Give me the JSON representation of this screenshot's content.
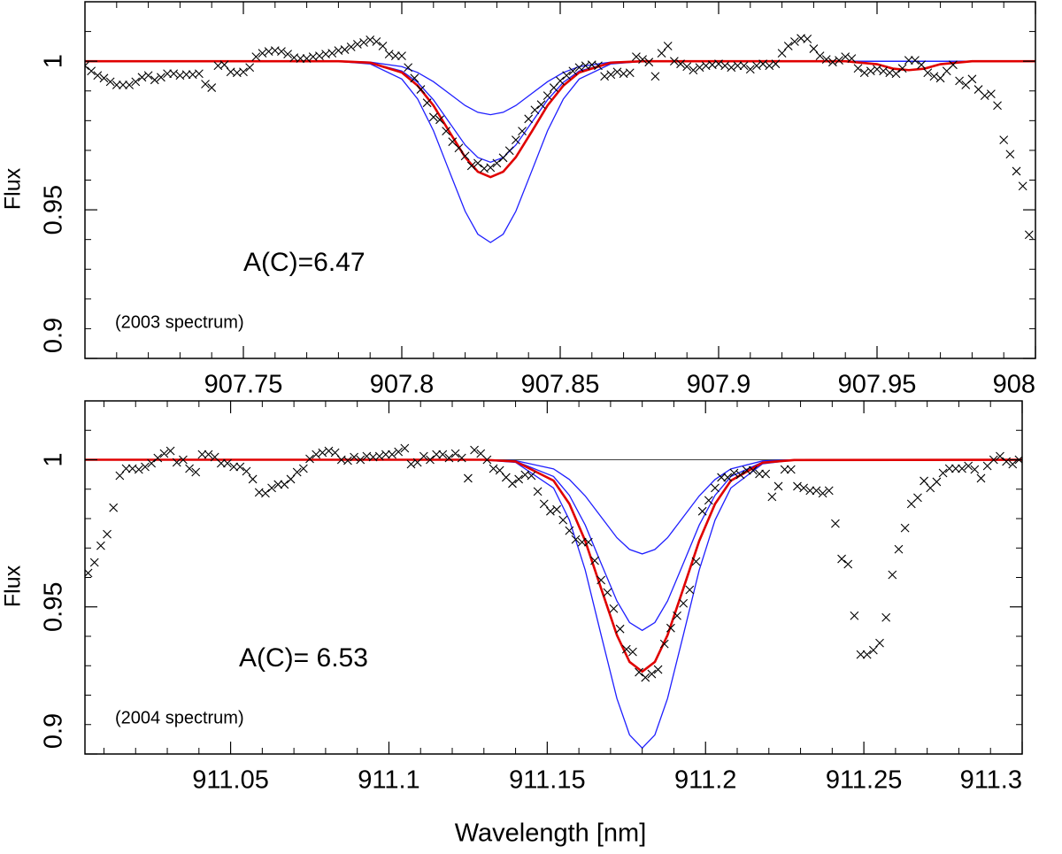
{
  "chart_data": [
    {
      "type": "scatter",
      "ylabel": "Flux",
      "xlim": [
        907.7,
        908.0
      ],
      "ylim": [
        0.9,
        1.02
      ],
      "xticks": [
        907.75,
        907.8,
        907.85,
        907.9,
        907.95,
        908
      ],
      "yticks": [
        0.9,
        0.95,
        1
      ],
      "xminor": [
        907.71,
        907.72,
        907.73,
        907.74,
        907.76,
        907.77,
        907.78,
        907.79,
        907.81,
        907.82,
        907.83,
        907.84,
        907.86,
        907.87,
        907.88,
        907.89,
        907.91,
        907.92,
        907.93,
        907.94,
        907.96,
        907.97,
        907.98,
        907.99
      ],
      "yminor": [
        0.91,
        0.92,
        0.93,
        0.94,
        0.96,
        0.97,
        0.98,
        0.99,
        1.01
      ],
      "annotations": [
        {
          "text": "A(C)=6.47"
        },
        {
          "text": "(2003 spectrum)"
        }
      ],
      "points": {
        "marker": "x",
        "color": "#000000",
        "x": [
          907.7,
          907.702,
          907.704,
          907.706,
          907.708,
          907.71,
          907.712,
          907.714,
          907.716,
          907.718,
          907.72,
          907.722,
          907.724,
          907.726,
          907.728,
          907.73,
          907.732,
          907.734,
          907.736,
          907.738,
          907.74,
          907.742,
          907.744,
          907.746,
          907.748,
          907.75,
          907.752,
          907.754,
          907.756,
          907.758,
          907.76,
          907.762,
          907.764,
          907.766,
          907.768,
          907.77,
          907.772,
          907.774,
          907.776,
          907.778,
          907.78,
          907.782,
          907.784,
          907.786,
          907.788,
          907.79,
          907.792,
          907.794,
          907.796,
          907.798,
          907.8,
          907.802,
          907.804,
          907.806,
          907.808,
          907.81,
          907.812,
          907.814,
          907.816,
          907.818,
          907.82,
          907.822,
          907.824,
          907.826,
          907.828,
          907.83,
          907.832,
          907.834,
          907.836,
          907.838,
          907.84,
          907.842,
          907.844,
          907.846,
          907.848,
          907.85,
          907.852,
          907.854,
          907.856,
          907.858,
          907.86,
          907.862,
          907.864,
          907.866,
          907.868,
          907.87,
          907.872,
          907.874,
          907.876,
          907.878,
          907.88,
          907.882,
          907.884,
          907.886,
          907.888,
          907.89,
          907.892,
          907.894,
          907.896,
          907.898,
          907.9,
          907.902,
          907.904,
          907.906,
          907.908,
          907.91,
          907.912,
          907.914,
          907.916,
          907.918,
          907.92,
          907.922,
          907.924,
          907.926,
          907.928,
          907.93,
          907.932,
          907.934,
          907.936,
          907.938,
          907.94,
          907.942,
          907.944,
          907.946,
          907.948,
          907.95,
          907.952,
          907.954,
          907.956,
          907.958,
          907.96,
          907.962,
          907.964,
          907.966,
          907.968,
          907.97,
          907.972,
          907.974,
          907.976,
          907.978,
          907.98,
          907.982,
          907.984,
          907.986,
          907.988,
          907.99,
          907.992,
          907.994,
          907.996,
          907.998
        ],
        "values": [
          0.9985,
          0.9967,
          0.9952,
          0.9943,
          0.9931,
          0.992,
          0.992,
          0.992,
          0.9931,
          0.9946,
          0.9952,
          0.9937,
          0.9946,
          0.9958,
          0.9958,
          0.9952,
          0.9955,
          0.9955,
          0.9958,
          0.9923,
          0.9911,
          0.9985,
          0.9988,
          0.9964,
          0.9961,
          0.9964,
          0.9979,
          1.0015,
          1.0027,
          1.0033,
          1.0036,
          1.0033,
          1.0024,
          1.0012,
          1.0009,
          1.0009,
          1.0015,
          1.0018,
          1.0024,
          1.0027,
          1.0036,
          1.0039,
          1.0048,
          1.0057,
          1.0063,
          1.0072,
          1.0066,
          1.0051,
          1.0024,
          1.0018,
          1.0018,
          0.9979,
          0.9943,
          0.9905,
          0.986,
          0.9812,
          0.9803,
          0.9765,
          0.9729,
          0.9708,
          0.9681,
          0.9648,
          0.9657,
          0.9639,
          0.9642,
          0.9657,
          0.9675,
          0.9699,
          0.9735,
          0.9765,
          0.9806,
          0.9836,
          0.9854,
          0.9884,
          0.9911,
          0.9934,
          0.9952,
          0.9967,
          0.9979,
          0.9985,
          0.9988,
          0.9985,
          0.9949,
          0.9955,
          0.9964,
          0.9958,
          0.9961,
          1.0015,
          1.0006,
          0.9997,
          0.9949,
          1.0027,
          1.0051,
          1,
          0.9991,
          0.9982,
          0.997,
          0.9979,
          0.9985,
          0.9988,
          0.9991,
          0.9985,
          0.9979,
          0.9985,
          0.9985,
          0.9973,
          0.9985,
          0.9991,
          0.9985,
          0.9991,
          1.0027,
          1.0051,
          1.0066,
          1.0077,
          1.0075,
          1.0042,
          1.0018,
          1.0006,
          0.9997,
          1.0003,
          1.0015,
          1.0009,
          0.9976,
          0.9961,
          0.9967,
          0.9973,
          0.9967,
          0.9961,
          0.9958,
          0.9976,
          1.0003,
          1.0003,
          0.9988,
          0.9961,
          0.9949,
          0.9943,
          0.9967,
          0.9988,
          0.9934,
          0.992,
          0.994,
          0.9905,
          0.9884,
          0.989,
          0.9851,
          0.9735,
          0.9687,
          0.963,
          0.958,
          0.9416
        ]
      },
      "curves": {
        "x": [
          907.7,
          907.78,
          907.79,
          907.8,
          907.805,
          907.81,
          907.815,
          907.82,
          907.824,
          907.828,
          907.832,
          907.836,
          907.841,
          907.846,
          907.851,
          907.856,
          907.866,
          907.876,
          907.94,
          907.95,
          907.955,
          907.96,
          907.965,
          907.97,
          907.98,
          908
        ],
        "series": [
          {
            "color": "#1f1fff",
            "width": 1.3,
            "values": [
              1,
              1,
              0.9997,
              0.9982,
              0.9962,
              0.9931,
              0.9891,
              0.9851,
              0.9828,
              0.982,
              0.9828,
              0.9851,
              0.9891,
              0.9931,
              0.9962,
              0.9982,
              0.9997,
              1,
              1,
              1,
              1,
              1,
              1,
              1,
              1,
              1
            ]
          },
          {
            "color": "#1f1fff",
            "width": 1.3,
            "values": [
              1,
              1,
              0.9995,
              0.9967,
              0.9929,
              0.987,
              0.9794,
              0.9718,
              0.9676,
              0.966,
              0.9676,
              0.9718,
              0.9794,
              0.987,
              0.9929,
              0.9967,
              0.9995,
              1,
              1,
              1,
              1,
              1,
              1,
              1,
              1,
              1
            ]
          },
          {
            "color": "#1f1fff",
            "width": 1.3,
            "values": [
              1,
              0.9999,
              0.9991,
              0.994,
              0.9873,
              0.9766,
              0.963,
              0.9495,
              0.9418,
              0.939,
              0.9418,
              0.9495,
              0.963,
              0.9766,
              0.9873,
              0.994,
              0.9991,
              0.9999,
              1,
              1,
              1,
              1,
              1,
              1,
              1,
              1
            ]
          },
          {
            "color": "#e00000",
            "width": 2.6,
            "values": [
              1,
              1,
              0.9995,
              0.9962,
              0.9918,
              0.9851,
              0.9763,
              0.9677,
              0.9628,
              0.961,
              0.9628,
              0.9677,
              0.9763,
              0.9851,
              0.9918,
              0.9962,
              0.9995,
              1,
              1,
              0.999,
              0.9975,
              0.997,
              0.9975,
              0.999,
              1,
              1
            ]
          }
        ]
      }
    },
    {
      "type": "scatter",
      "ylabel": "Flux",
      "xlabel": "Wavelength [nm]",
      "xlim": [
        911.004,
        911.3
      ],
      "ylim": [
        0.9,
        1.02
      ],
      "xticks": [
        911.05,
        911.1,
        911.15,
        911.2,
        911.25,
        911.3
      ],
      "yticks": [
        0.9,
        0.95,
        1
      ],
      "xminor": [
        911.01,
        911.02,
        911.03,
        911.04,
        911.06,
        911.07,
        911.08,
        911.09,
        911.11,
        911.12,
        911.13,
        911.14,
        911.16,
        911.17,
        911.18,
        911.19,
        911.21,
        911.22,
        911.23,
        911.24,
        911.26,
        911.27,
        911.28,
        911.29
      ],
      "yminor": [
        0.91,
        0.92,
        0.93,
        0.94,
        0.96,
        0.97,
        0.98,
        0.99,
        1.01
      ],
      "annotations": [
        {
          "text": "A(C)= 6.53"
        },
        {
          "text": "(2004 spectrum)"
        }
      ],
      "points": {
        "marker": "x",
        "color": "#000000",
        "x": [
          911.005,
          911.007,
          911.009,
          911.011,
          911.013,
          911.015,
          911.017,
          911.019,
          911.021,
          911.023,
          911.025,
          911.027,
          911.029,
          911.031,
          911.033,
          911.035,
          911.037,
          911.039,
          911.041,
          911.043,
          911.045,
          911.047,
          911.049,
          911.051,
          911.053,
          911.055,
          911.057,
          911.059,
          911.061,
          911.063,
          911.065,
          911.067,
          911.069,
          911.071,
          911.073,
          911.075,
          911.077,
          911.079,
          911.081,
          911.083,
          911.085,
          911.087,
          911.089,
          911.091,
          911.093,
          911.095,
          911.097,
          911.099,
          911.101,
          911.103,
          911.105,
          911.107,
          911.109,
          911.111,
          911.113,
          911.115,
          911.117,
          911.119,
          911.121,
          911.123,
          911.125,
          911.127,
          911.129,
          911.131,
          911.133,
          911.135,
          911.137,
          911.139,
          911.141,
          911.143,
          911.145,
          911.147,
          911.149,
          911.151,
          911.153,
          911.155,
          911.157,
          911.159,
          911.161,
          911.163,
          911.165,
          911.167,
          911.169,
          911.171,
          911.173,
          911.175,
          911.177,
          911.179,
          911.181,
          911.183,
          911.185,
          911.187,
          911.189,
          911.191,
          911.193,
          911.195,
          911.197,
          911.199,
          911.201,
          911.203,
          911.205,
          911.207,
          911.209,
          911.211,
          911.213,
          911.215,
          911.217,
          911.219,
          911.221,
          911.223,
          911.225,
          911.227,
          911.229,
          911.231,
          911.233,
          911.235,
          911.237,
          911.239,
          911.241,
          911.243,
          911.245,
          911.247,
          911.249,
          911.251,
          911.253,
          911.255,
          911.257,
          911.259,
          911.261,
          911.263,
          911.265,
          911.267,
          911.269,
          911.271,
          911.273,
          911.275,
          911.277,
          911.279,
          911.281,
          911.283,
          911.285,
          911.287,
          911.289,
          911.291,
          911.293,
          911.295,
          911.297,
          911.299
        ],
        "values": [
          0.9615,
          0.9651,
          0.9708,
          0.9747,
          0.9837,
          0.9946,
          0.997,
          0.997,
          0.9967,
          0.9976,
          0.9988,
          1.0006,
          1.0021,
          1.003,
          0.9991,
          1,
          0.997,
          0.9958,
          1.0018,
          1.0018,
          1.0009,
          0.9988,
          0.9988,
          0.9976,
          0.9976,
          0.9961,
          0.9934,
          0.9889,
          0.9886,
          0.9904,
          0.9916,
          0.9916,
          0.9934,
          0.9958,
          0.997,
          1.0003,
          1.0018,
          1.0024,
          1.003,
          1.0024,
          1,
          0.9997,
          1.0009,
          1,
          1.0012,
          1.0009,
          1.0012,
          1.0018,
          1.0018,
          1.0027,
          1.0039,
          0.9985,
          0.9991,
          1.0012,
          1,
          1.0018,
          1.0018,
          1.0006,
          1.0021,
          1.0006,
          0.9937,
          1.0033,
          1.0021,
          1,
          0.997,
          0.9964,
          0.994,
          0.9919,
          0.9934,
          0.9949,
          0.9946,
          0.9892,
          0.985,
          0.9825,
          0.9831,
          0.9795,
          0.9759,
          0.9729,
          0.972,
          0.972,
          0.9657,
          0.9591,
          0.9549,
          0.9494,
          0.9425,
          0.9356,
          0.9347,
          0.9278,
          0.926,
          0.9272,
          0.9287,
          0.9374,
          0.9428,
          0.947,
          0.9512,
          0.9558,
          0.9654,
          0.9825,
          0.9862,
          0.9904,
          0.994,
          0.994,
          0.9955,
          0.9949,
          0.9964,
          0.9964,
          0.9952,
          0.9952,
          0.9874,
          0.991,
          0.9967,
          0.9967,
          0.991,
          0.9904,
          0.9895,
          0.9895,
          0.9886,
          0.9895,
          0.9783,
          0.9663,
          0.9645,
          0.947,
          0.9338,
          0.9338,
          0.9353,
          0.9377,
          0.9464,
          0.9609,
          0.9696,
          0.9768,
          0.985,
          0.9871,
          0.9928,
          0.9904,
          0.9925,
          0.9955,
          0.997,
          0.997,
          0.997,
          0.9979,
          0.9967,
          0.9937,
          0.9979,
          1,
          1.0012,
          0.9994,
          0.9985,
          1
        ]
      },
      "curves": {
        "x": [
          911.004,
          911.13,
          911.14,
          911.152,
          911.157,
          911.162,
          911.167,
          911.172,
          911.176,
          911.18,
          911.184,
          911.188,
          911.193,
          911.198,
          911.203,
          911.208,
          911.218,
          911.228,
          911.3
        ],
        "series": [
          {
            "color": "#000000",
            "width": 0.8,
            "values": [
              1,
              1,
              1,
              1,
              1,
              1,
              1,
              1,
              1,
              1,
              1,
              1,
              1,
              1,
              1,
              1,
              1,
              1,
              1
            ]
          },
          {
            "color": "#1f1fff",
            "width": 1.3,
            "values": [
              1,
              1,
              0.9997,
              0.9969,
              0.9933,
              0.9877,
              0.9806,
              0.9735,
              0.9695,
              0.968,
              0.9695,
              0.9735,
              0.9806,
              0.9877,
              0.9933,
              0.9969,
              0.9996,
              1,
              1
            ]
          },
          {
            "color": "#1f1fff",
            "width": 1.3,
            "values": [
              1,
              1,
              0.9995,
              0.9943,
              0.9879,
              0.9778,
              0.9648,
              0.952,
              0.9447,
              0.942,
              0.9447,
              0.952,
              0.9648,
              0.9778,
              0.9879,
              0.9943,
              0.9992,
              0.9999,
              1
            ]
          },
          {
            "color": "#1f1fff",
            "width": 1.3,
            "values": [
              1,
              0.9999,
              0.9991,
              0.9904,
              0.9795,
              0.9625,
              0.9405,
              0.9189,
              0.9065,
              0.902,
              0.9065,
              0.9189,
              0.9405,
              0.9625,
              0.9795,
              0.9904,
              0.9986,
              0.9999,
              1
            ]
          },
          {
            "color": "#e00000",
            "width": 2.6,
            "values": [
              1,
              1,
              0.9994,
              0.9929,
              0.985,
              0.9724,
              0.9563,
              0.9404,
              0.9313,
              0.928,
              0.9313,
              0.9404,
              0.9563,
              0.9724,
              0.985,
              0.9929,
              0.999,
              0.9999,
              1
            ]
          }
        ]
      }
    }
  ]
}
